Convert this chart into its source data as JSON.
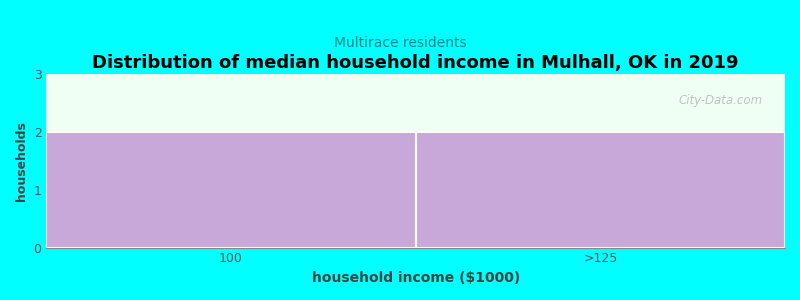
{
  "title": "Distribution of median household income in Mulhall, OK in 2019",
  "subtitle": "Multirace residents",
  "xlabel": "household income ($1000)",
  "ylabel": "households",
  "categories": [
    "100",
    ">125"
  ],
  "values": [
    2,
    2
  ],
  "bar_color": "#C8A8D8",
  "title_fontsize": 13,
  "subtitle_fontsize": 10,
  "subtitle_color": "#008888",
  "xlabel_fontsize": 10,
  "ylabel_fontsize": 9,
  "ylim": [
    0,
    3
  ],
  "background_color": "#00FFFF",
  "plot_bg_color": "#F0FFF4",
  "watermark": "City-Data.com",
  "watermark_color": "#AAAAAA",
  "tick_color": "#555555"
}
